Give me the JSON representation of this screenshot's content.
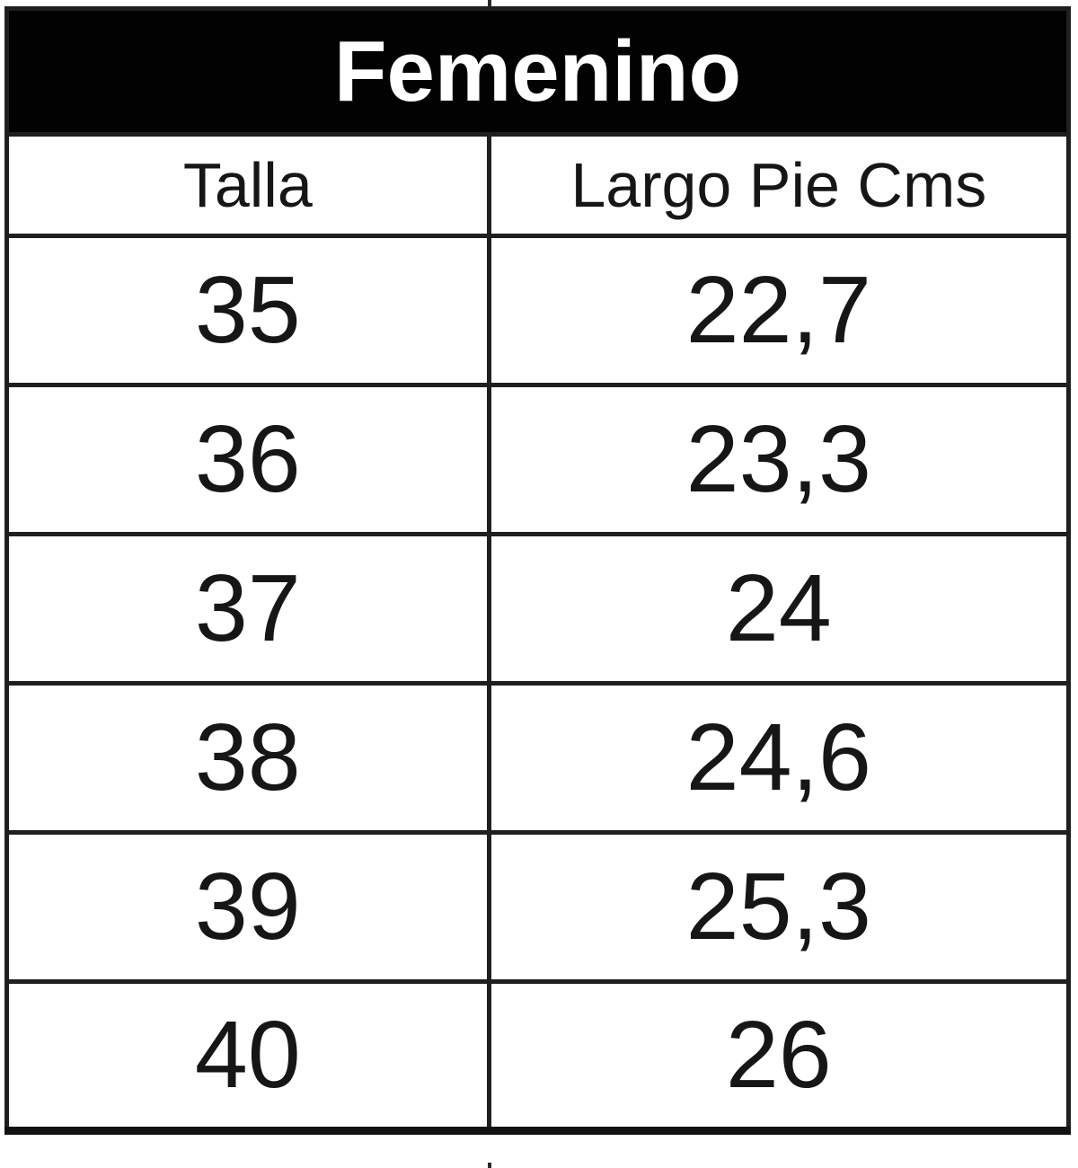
{
  "table": {
    "title": "Femenino",
    "columns": {
      "talla": "Talla",
      "largo": "Largo Pie Cms"
    },
    "rows": [
      {
        "talla": "35",
        "largo": "22,7"
      },
      {
        "talla": "36",
        "largo": "23,3"
      },
      {
        "talla": "37",
        "largo": "24"
      },
      {
        "talla": "38",
        "largo": "24,6"
      },
      {
        "talla": "39",
        "largo": "25,3"
      },
      {
        "talla": "40",
        "largo": "26"
      }
    ]
  },
  "colors": {
    "title_background": "#000000",
    "title_text": "#ffffff",
    "cell_background": "#ffffff",
    "cell_text": "#161616",
    "grid_border": "#1f1f1f"
  },
  "chart_data": {
    "type": "table",
    "title": "Femenino",
    "columns": [
      "Talla",
      "Largo Pie Cms"
    ],
    "rows": [
      [
        35,
        22.7
      ],
      [
        36,
        23.3
      ],
      [
        37,
        24
      ],
      [
        38,
        24.6
      ],
      [
        39,
        25.3
      ],
      [
        40,
        26
      ]
    ],
    "decimal_separator": ",",
    "layout": "2-column size chart, black title band spanning both columns, heavy black grid lines"
  }
}
